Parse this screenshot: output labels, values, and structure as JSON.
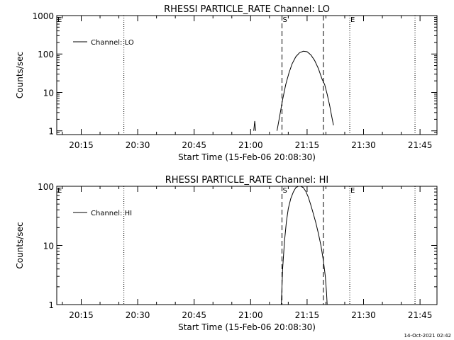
{
  "chart_data": [
    {
      "type": "line",
      "title": "RHESSI PARTICLE_RATE Channel: LO",
      "xlabel": "Start Time (15-Feb-06 20:08:30)",
      "ylabel": "Counts/sec",
      "y_scale": "log",
      "xlim": [
        "20:08:30",
        "21:49:30"
      ],
      "ylim": [
        0.8,
        1000
      ],
      "x_ticks": [
        "20:15",
        "20:30",
        "20:45",
        "21:00",
        "21:15",
        "21:30",
        "21:45"
      ],
      "y_ticks": [
        "1",
        "10",
        "100",
        "1000"
      ],
      "legend": {
        "position": "top-left",
        "entries": [
          "Channel: LO"
        ]
      },
      "markers": [
        {
          "label": "E",
          "time": "20:08:30",
          "style": "dotted"
        },
        {
          "label": "",
          "time": "20:26:20",
          "style": "dotted"
        },
        {
          "label": "S",
          "time": "21:08:20",
          "style": "dashed"
        },
        {
          "label": "",
          "time": "21:19:20",
          "style": "dashed"
        },
        {
          "label": "E",
          "time": "21:26:20",
          "style": "dotted"
        },
        {
          "label": "",
          "time": "21:43:40",
          "style": "dotted"
        }
      ],
      "series": [
        {
          "name": "Channel: LO",
          "segments": [
            {
              "x": [
                "21:00:50",
                "21:01:05",
                "21:01:20"
              ],
              "y": [
                1.0,
                1.8,
                1.0
              ]
            },
            {
              "x": [
                "21:07:00",
                "21:07:45",
                "21:08:30",
                "21:09:20",
                "21:10:10",
                "21:11:00",
                "21:12:00",
                "21:13:00",
                "21:14:00",
                "21:15:00",
                "21:16:00",
                "21:17:00",
                "21:18:00",
                "21:19:00",
                "21:19:40",
                "21:20:20",
                "21:21:00",
                "21:21:30",
                "21:22:00"
              ],
              "y": [
                1.0,
                2.5,
                6.5,
                16,
                32,
                55,
                85,
                108,
                118,
                115,
                95,
                68,
                42,
                22,
                16,
                9,
                4.5,
                2.5,
                1.4
              ]
            }
          ]
        }
      ]
    },
    {
      "type": "line",
      "title": "RHESSI PARTICLE_RATE Channel: HI",
      "xlabel": "Start Time (15-Feb-06 20:08:30)",
      "ylabel": "Counts/sec",
      "y_scale": "log",
      "xlim": [
        "20:08:30",
        "21:49:30"
      ],
      "ylim": [
        1,
        100
      ],
      "x_ticks": [
        "20:15",
        "20:30",
        "20:45",
        "21:00",
        "21:15",
        "21:30",
        "21:45"
      ],
      "y_ticks": [
        "1",
        "10",
        "100"
      ],
      "legend": {
        "position": "top-left",
        "entries": [
          "Channel: HI"
        ]
      },
      "markers": [
        {
          "label": "E",
          "time": "20:08:30",
          "style": "dotted"
        },
        {
          "label": "",
          "time": "20:26:20",
          "style": "dotted"
        },
        {
          "label": "S",
          "time": "21:08:20",
          "style": "dashed"
        },
        {
          "label": "",
          "time": "21:19:20",
          "style": "dashed"
        },
        {
          "label": "E",
          "time": "21:26:20",
          "style": "dotted"
        },
        {
          "label": "",
          "time": "21:43:40",
          "style": "dotted"
        }
      ],
      "series": [
        {
          "name": "Channel: HI",
          "segments": [
            {
              "x": [
                "21:08:10",
                "21:08:30",
                "21:09:00",
                "21:09:30",
                "21:10:00",
                "21:10:40",
                "21:11:20",
                "21:12:00",
                "21:12:40",
                "21:13:20",
                "21:14:00",
                "21:14:40",
                "21:15:20",
                "21:16:00",
                "21:16:40",
                "21:17:20",
                "21:18:00",
                "21:18:40",
                "21:19:20",
                "21:19:50",
                "21:20:10",
                "21:20:20"
              ],
              "y": [
                1.0,
                4,
                12,
                25,
                42,
                62,
                80,
                95,
                100,
                100,
                95,
                82,
                65,
                48,
                34,
                24,
                16,
                10,
                5.5,
                3,
                1.6,
                1.0
              ]
            }
          ]
        }
      ]
    }
  ],
  "footer": {
    "timestamp": "14-Oct-2021 02:42"
  }
}
